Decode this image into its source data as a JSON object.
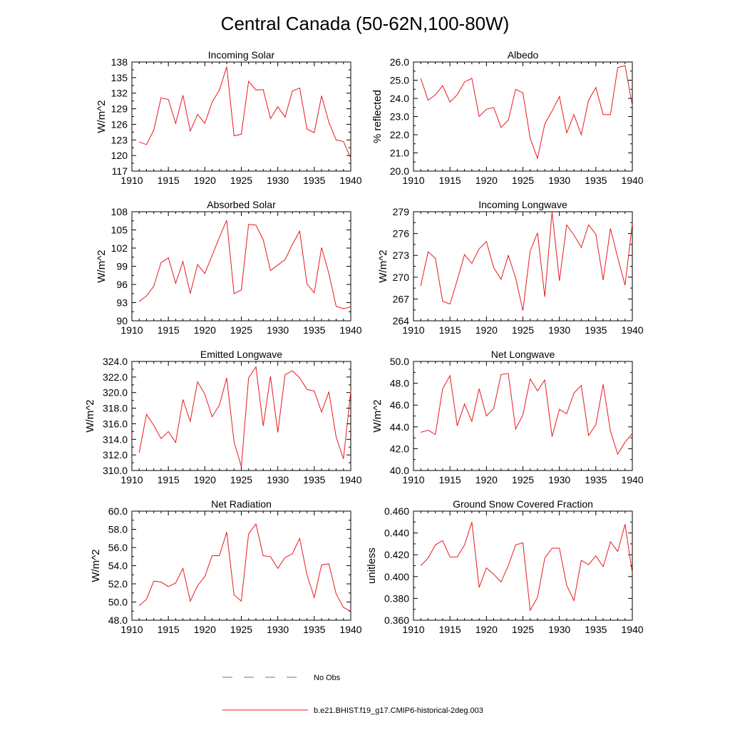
{
  "title": "Central Canada (50-62N,100-80W)",
  "colors": {
    "model": "#e8191f",
    "obs": "#6b6bbf",
    "axis": "#000000"
  },
  "legend": {
    "obs_label": "No Obs",
    "model_label": "b.e21.BHIST.f19_g17.CMIP6-historical-2deg.003"
  },
  "chart_data": [
    {
      "type": "line",
      "title": "Incoming Solar",
      "xlabel": "",
      "ylabel": "W/m^2",
      "xlim": [
        1910,
        1940
      ],
      "ylim": [
        117,
        138
      ],
      "xticks": [
        1910,
        1915,
        1920,
        1925,
        1930,
        1935,
        1940
      ],
      "yticks": [
        "117",
        "120",
        "123",
        "126",
        "129",
        "132",
        "135",
        "138"
      ],
      "x": [
        1911,
        1912,
        1913,
        1914,
        1915,
        1916,
        1917,
        1918,
        1919,
        1920,
        1921,
        1922,
        1923,
        1924,
        1925,
        1926,
        1927,
        1928,
        1929,
        1930,
        1931,
        1932,
        1933,
        1934,
        1935,
        1936,
        1937,
        1938,
        1939,
        1940
      ],
      "series": [
        {
          "name": "b.e21.BHIST.f19_g17.CMIP6-historical-2deg.003",
          "values": [
            122.6,
            122.1,
            124.9,
            131.1,
            130.8,
            126.2,
            131.6,
            124.7,
            127.9,
            126.2,
            130.3,
            132.6,
            137.1,
            123.8,
            124.1,
            134.3,
            132.6,
            132.7,
            127.1,
            129.4,
            127.4,
            132.4,
            133.0,
            125.1,
            124.4,
            131.5,
            126.4,
            123.0,
            122.7,
            119.5
          ]
        }
      ]
    },
    {
      "type": "line",
      "title": "Albedo",
      "xlabel": "",
      "ylabel": "% reflected",
      "xlim": [
        1910,
        1940
      ],
      "ylim": [
        20.0,
        26.0
      ],
      "xticks": [
        1910,
        1915,
        1920,
        1925,
        1930,
        1935,
        1940
      ],
      "yticks": [
        "20.0",
        "21.0",
        "22.0",
        "23.0",
        "24.0",
        "25.0",
        "26.0"
      ],
      "x": [
        1911,
        1912,
        1913,
        1914,
        1915,
        1916,
        1917,
        1918,
        1919,
        1920,
        1921,
        1922,
        1923,
        1924,
        1925,
        1926,
        1927,
        1928,
        1929,
        1930,
        1931,
        1932,
        1933,
        1934,
        1935,
        1936,
        1937,
        1938,
        1939,
        1940
      ],
      "series": [
        {
          "name": "b.e21.BHIST.f19_g17.CMIP6-historical-2deg.003",
          "values": [
            25.1,
            23.9,
            24.2,
            24.7,
            23.8,
            24.2,
            24.9,
            25.1,
            23.0,
            23.4,
            23.5,
            22.4,
            22.8,
            24.5,
            24.3,
            21.8,
            20.7,
            22.6,
            23.3,
            24.1,
            22.1,
            23.1,
            22.0,
            23.9,
            24.6,
            23.1,
            23.1,
            25.7,
            25.8,
            23.6
          ]
        }
      ]
    },
    {
      "type": "line",
      "title": "Absorbed Solar",
      "xlabel": "",
      "ylabel": "W/m^2",
      "xlim": [
        1910,
        1940
      ],
      "ylim": [
        90,
        108
      ],
      "xticks": [
        1910,
        1915,
        1920,
        1925,
        1930,
        1935,
        1940
      ],
      "yticks": [
        "90",
        "93",
        "96",
        "99",
        "102",
        "105",
        "108"
      ],
      "x": [
        1911,
        1912,
        1913,
        1914,
        1915,
        1916,
        1917,
        1918,
        1919,
        1920,
        1921,
        1922,
        1923,
        1924,
        1925,
        1926,
        1927,
        1928,
        1929,
        1930,
        1931,
        1932,
        1933,
        1934,
        1935,
        1936,
        1937,
        1938,
        1939,
        1940
      ],
      "series": [
        {
          "name": "b.e21.BHIST.f19_g17.CMIP6-historical-2deg.003",
          "values": [
            93.2,
            94.1,
            95.7,
            99.6,
            100.4,
            96.2,
            99.8,
            94.5,
            99.3,
            97.8,
            100.8,
            103.8,
            106.6,
            94.5,
            95.1,
            105.9,
            105.8,
            103.4,
            98.3,
            99.2,
            100.1,
            102.6,
            104.8,
            96.1,
            94.6,
            102.1,
            97.8,
            92.4,
            92.0,
            92.3
          ]
        }
      ]
    },
    {
      "type": "line",
      "title": "Incoming Longwave",
      "xlabel": "",
      "ylabel": "W/m^2",
      "xlim": [
        1910,
        1940
      ],
      "ylim": [
        264,
        279
      ],
      "xticks": [
        1910,
        1915,
        1920,
        1925,
        1930,
        1935,
        1940
      ],
      "yticks": [
        "264",
        "267",
        "270",
        "273",
        "276",
        "279"
      ],
      "x": [
        1911,
        1912,
        1913,
        1914,
        1915,
        1916,
        1917,
        1918,
        1919,
        1920,
        1921,
        1922,
        1923,
        1924,
        1925,
        1926,
        1927,
        1928,
        1929,
        1930,
        1931,
        1932,
        1933,
        1934,
        1935,
        1936,
        1937,
        1938,
        1939,
        1940
      ],
      "series": [
        {
          "name": "b.e21.BHIST.f19_g17.CMIP6-historical-2deg.003",
          "values": [
            268.8,
            273.5,
            272.6,
            266.7,
            266.3,
            269.6,
            273.1,
            271.9,
            273.9,
            274.9,
            271.3,
            269.7,
            273.0,
            269.9,
            265.4,
            273.6,
            276.1,
            267.3,
            279.0,
            269.5,
            277.2,
            275.8,
            274.1,
            277.2,
            275.9,
            269.6,
            276.7,
            272.7,
            268.9,
            277.4
          ]
        }
      ]
    },
    {
      "type": "line",
      "title": "Emitted Longwave",
      "xlabel": "",
      "ylabel": "W/m^2",
      "xlim": [
        1910,
        1940
      ],
      "ylim": [
        310.0,
        324.0
      ],
      "xticks": [
        1910,
        1915,
        1920,
        1925,
        1930,
        1935,
        1940
      ],
      "yticks": [
        "310.0",
        "312.0",
        "314.0",
        "316.0",
        "318.0",
        "320.0",
        "322.0",
        "324.0"
      ],
      "x": [
        1911,
        1912,
        1913,
        1914,
        1915,
        1916,
        1917,
        1918,
        1919,
        1920,
        1921,
        1922,
        1923,
        1924,
        1925,
        1926,
        1927,
        1928,
        1929,
        1930,
        1931,
        1932,
        1933,
        1934,
        1935,
        1936,
        1937,
        1938,
        1939,
        1940
      ],
      "series": [
        {
          "name": "b.e21.BHIST.f19_g17.CMIP6-historical-2deg.003",
          "values": [
            312.3,
            317.2,
            315.8,
            314.1,
            315.0,
            313.6,
            319.1,
            316.3,
            321.4,
            319.8,
            316.9,
            318.4,
            321.9,
            313.7,
            310.5,
            321.9,
            323.3,
            315.7,
            322.1,
            314.9,
            322.3,
            322.8,
            321.9,
            320.4,
            320.2,
            317.5,
            320.1,
            314.3,
            311.5,
            320.2
          ]
        }
      ]
    },
    {
      "type": "line",
      "title": "Net Longwave",
      "xlabel": "",
      "ylabel": "W/m^2",
      "xlim": [
        1910,
        1940
      ],
      "ylim": [
        40.0,
        50.0
      ],
      "xticks": [
        1910,
        1915,
        1920,
        1925,
        1930,
        1935,
        1940
      ],
      "yticks": [
        "40.0",
        "42.0",
        "44.0",
        "46.0",
        "48.0",
        "50.0"
      ],
      "x": [
        1911,
        1912,
        1913,
        1914,
        1915,
        1916,
        1917,
        1918,
        1919,
        1920,
        1921,
        1922,
        1923,
        1924,
        1925,
        1926,
        1927,
        1928,
        1929,
        1930,
        1931,
        1932,
        1933,
        1934,
        1935,
        1936,
        1937,
        1938,
        1939,
        1940
      ],
      "series": [
        {
          "name": "b.e21.BHIST.f19_g17.CMIP6-historical-2deg.003",
          "values": [
            43.5,
            43.7,
            43.3,
            47.5,
            48.7,
            44.1,
            46.1,
            44.5,
            47.5,
            45.0,
            45.7,
            48.8,
            48.9,
            43.8,
            45.1,
            48.4,
            47.3,
            48.3,
            43.1,
            45.6,
            45.2,
            47.1,
            47.8,
            43.2,
            44.2,
            47.9,
            43.6,
            41.5,
            42.6,
            43.4
          ]
        }
      ]
    },
    {
      "type": "line",
      "title": "Net Radiation",
      "xlabel": "",
      "ylabel": "W/m^2",
      "xlim": [
        1910,
        1940
      ],
      "ylim": [
        48.0,
        60.0
      ],
      "xticks": [
        1910,
        1915,
        1920,
        1925,
        1930,
        1935,
        1940
      ],
      "yticks": [
        "48.0",
        "50.0",
        "52.0",
        "54.0",
        "56.0",
        "58.0",
        "60.0"
      ],
      "x": [
        1911,
        1912,
        1913,
        1914,
        1915,
        1916,
        1917,
        1918,
        1919,
        1920,
        1921,
        1922,
        1923,
        1924,
        1925,
        1926,
        1927,
        1928,
        1929,
        1930,
        1931,
        1932,
        1933,
        1934,
        1935,
        1936,
        1937,
        1938,
        1939,
        1940
      ],
      "series": [
        {
          "name": "b.e21.BHIST.f19_g17.CMIP6-historical-2deg.003",
          "values": [
            49.6,
            50.3,
            52.3,
            52.2,
            51.7,
            52.1,
            53.7,
            50.1,
            51.8,
            52.8,
            55.1,
            55.1,
            57.7,
            50.8,
            50.1,
            57.5,
            58.6,
            55.1,
            55.0,
            53.7,
            54.9,
            55.3,
            57.0,
            53.0,
            50.5,
            54.1,
            54.2,
            50.9,
            49.4,
            49.0
          ]
        }
      ]
    },
    {
      "type": "line",
      "title": "Ground Snow Covered Fraction",
      "xlabel": "",
      "ylabel": "unitless",
      "xlim": [
        1910,
        1940
      ],
      "ylim": [
        0.36,
        0.46
      ],
      "xticks": [
        1910,
        1915,
        1920,
        1925,
        1930,
        1935,
        1940
      ],
      "yticks": [
        "0.360",
        "0.380",
        "0.400",
        "0.420",
        "0.440",
        "0.460"
      ],
      "x": [
        1911,
        1912,
        1913,
        1914,
        1915,
        1916,
        1917,
        1918,
        1919,
        1920,
        1921,
        1922,
        1923,
        1924,
        1925,
        1926,
        1927,
        1928,
        1929,
        1930,
        1931,
        1932,
        1933,
        1934,
        1935,
        1936,
        1937,
        1938,
        1939,
        1940
      ],
      "series": [
        {
          "name": "b.e21.BHIST.f19_g17.CMIP6-historical-2deg.003",
          "values": [
            0.41,
            0.417,
            0.429,
            0.433,
            0.418,
            0.418,
            0.429,
            0.45,
            0.39,
            0.408,
            0.402,
            0.395,
            0.41,
            0.429,
            0.431,
            0.369,
            0.381,
            0.417,
            0.426,
            0.426,
            0.392,
            0.378,
            0.415,
            0.411,
            0.419,
            0.409,
            0.432,
            0.423,
            0.448,
            0.403
          ]
        }
      ]
    }
  ]
}
